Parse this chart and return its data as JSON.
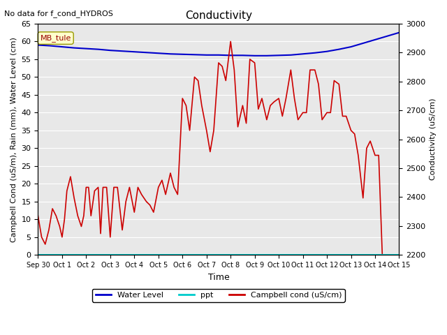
{
  "title": "Conductivity",
  "top_left_text": "No data for f_cond_HYDROS",
  "xlabel": "Time",
  "ylabel_left": "Campbell Cond (uS/m), Rain (mm), Water Level (cm)",
  "ylabel_right": "Conductivity (uS/cm)",
  "ylim_left": [
    0,
    65
  ],
  "ylim_right": [
    2200,
    3000
  ],
  "legend_label": "MB_tule",
  "background_color": "#e8e8e8",
  "xtick_labels": [
    "Sep 30",
    "Oct 1",
    "Oct 2",
    "Oct 3",
    "Oct 4",
    "Oct 5",
    "Oct 6",
    "Oct 7",
    "Oct 8",
    "Oct 9",
    "Oct 10",
    "Oct 11",
    "Oct 12",
    "Oct 13",
    "Oct 14",
    "Oct 15"
  ],
  "yticks_left": [
    0,
    5,
    10,
    15,
    20,
    25,
    30,
    35,
    40,
    45,
    50,
    55,
    60,
    65
  ],
  "yticks_right": [
    2200,
    2300,
    2400,
    2500,
    2600,
    2700,
    2800,
    2900,
    3000
  ],
  "water_level": {
    "x": [
      0,
      0.5,
      1,
      1.5,
      2,
      2.5,
      3,
      3.5,
      4,
      4.5,
      5,
      5.5,
      6,
      6.5,
      7,
      7.5,
      8,
      8.5,
      9,
      9.5,
      10,
      10.5,
      11,
      11.5,
      12,
      12.5,
      13,
      13.5,
      14,
      14.5,
      15
    ],
    "y": [
      59,
      58.8,
      58.5,
      58.2,
      58,
      57.8,
      57.5,
      57.3,
      57.1,
      56.9,
      56.7,
      56.5,
      56.4,
      56.3,
      56.2,
      56.2,
      56.1,
      56.1,
      56.0,
      56.0,
      56.1,
      56.2,
      56.5,
      56.8,
      57.2,
      57.8,
      58.5,
      59.5,
      60.5,
      61.5,
      62.5
    ],
    "color": "#0000cc"
  },
  "campbell_cond": {
    "x": [
      0,
      0.15,
      0.3,
      0.45,
      0.6,
      0.75,
      0.9,
      1.0,
      1.1,
      1.2,
      1.35,
      1.5,
      1.65,
      1.8,
      1.9,
      2.0,
      2.1,
      2.2,
      2.35,
      2.5,
      2.6,
      2.7,
      2.85,
      3.0,
      3.15,
      3.3,
      3.5,
      3.65,
      3.8,
      4.0,
      4.15,
      4.3,
      4.5,
      4.65,
      4.8,
      5.0,
      5.15,
      5.3,
      5.5,
      5.65,
      5.8,
      6.0,
      6.15,
      6.3,
      6.5,
      6.65,
      6.8,
      7.0,
      7.15,
      7.3,
      7.5,
      7.65,
      7.8,
      8.0,
      8.15,
      8.3,
      8.5,
      8.65,
      8.8,
      9.0,
      9.15,
      9.3,
      9.5,
      9.65,
      9.8,
      10.0,
      10.15,
      10.3,
      10.5,
      10.65,
      10.8,
      11.0,
      11.15,
      11.3,
      11.5,
      11.65,
      11.8,
      12.0,
      12.15,
      12.3,
      12.5,
      12.65,
      12.8,
      13.0,
      13.15,
      13.3,
      13.5,
      13.65,
      13.8,
      14.0,
      14.15,
      14.3,
      14.5,
      14.65,
      14.8,
      15.0
    ],
    "y": [
      11,
      5,
      3,
      7,
      13,
      11,
      8,
      5,
      10,
      18,
      22,
      16,
      11,
      8,
      11,
      19,
      19,
      11,
      18,
      19,
      6,
      19,
      19,
      5,
      19,
      19,
      7,
      15,
      19,
      12,
      19,
      17,
      15,
      14,
      12,
      19,
      21,
      17,
      23,
      19,
      17,
      44,
      42,
      35,
      50,
      49,
      42,
      35,
      29,
      35,
      54,
      53,
      49,
      60,
      52,
      36,
      42,
      37,
      55,
      54,
      41,
      44,
      38,
      42,
      43,
      44,
      39,
      44,
      52,
      44,
      38,
      40,
      40,
      52,
      52,
      48,
      38,
      40,
      40,
      49,
      48,
      39,
      39,
      35,
      34,
      28,
      16,
      30,
      32,
      28,
      28,
      0,
      0,
      0,
      0,
      0
    ],
    "color": "#cc0000"
  },
  "ppt": {
    "x": [
      0,
      15
    ],
    "y": [
      0,
      0
    ],
    "color": "#00cccc"
  }
}
